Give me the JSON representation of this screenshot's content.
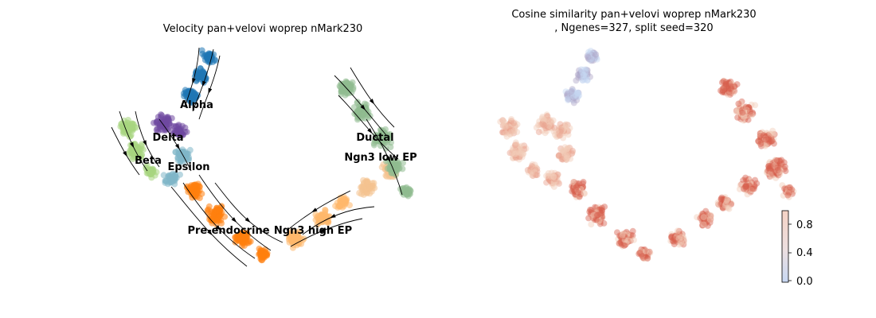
{
  "chart_data": [
    {
      "type": "scatter",
      "title": "Velocity pan+velovi woprep nMark230",
      "subtitle": "",
      "overlay": "velocity stream arrows",
      "axes_visible": false,
      "clusters": [
        {
          "name": "Alpha",
          "color": "#1f77b4"
        },
        {
          "name": "Delta",
          "color": "#7048a0"
        },
        {
          "name": "Beta",
          "color": "#a8d67f"
        },
        {
          "name": "Epsilon",
          "color": "#7fb6c8"
        },
        {
          "name": "Pre-endocrine",
          "color": "#ff7f0e"
        },
        {
          "name": "Ngn3 high EP",
          "color": "#ffb86b"
        },
        {
          "name": "Ngn3 low EP",
          "color": "#f4c38f"
        },
        {
          "name": "Ductal",
          "color": "#8fbc8f"
        }
      ]
    },
    {
      "type": "scatter",
      "title": "Cosine similarity pan+velovi woprep nMark230",
      "subtitle": ", Ngenes=327, split seed=320",
      "axes_visible": false,
      "colorbar": {
        "colormap": "coolwarm",
        "ticks": [
          "0.0",
          "0.4",
          "0.8"
        ],
        "range": [
          0.0,
          1.0
        ]
      }
    }
  ],
  "colors": {
    "alpha": "#1f77b4",
    "delta": "#7048a0",
    "beta": "#a8d67f",
    "epsilon": "#7fb6c8",
    "pre_endocrine": "#ff7f0e",
    "ngn3_high": "#ffb86b",
    "ngn3_low": "#f4c38f",
    "ductal": "#8fbc8f",
    "cos_low": "#c6d6f2",
    "cos_mid": "#f2ccb8",
    "cos_high": "#d6604d"
  }
}
